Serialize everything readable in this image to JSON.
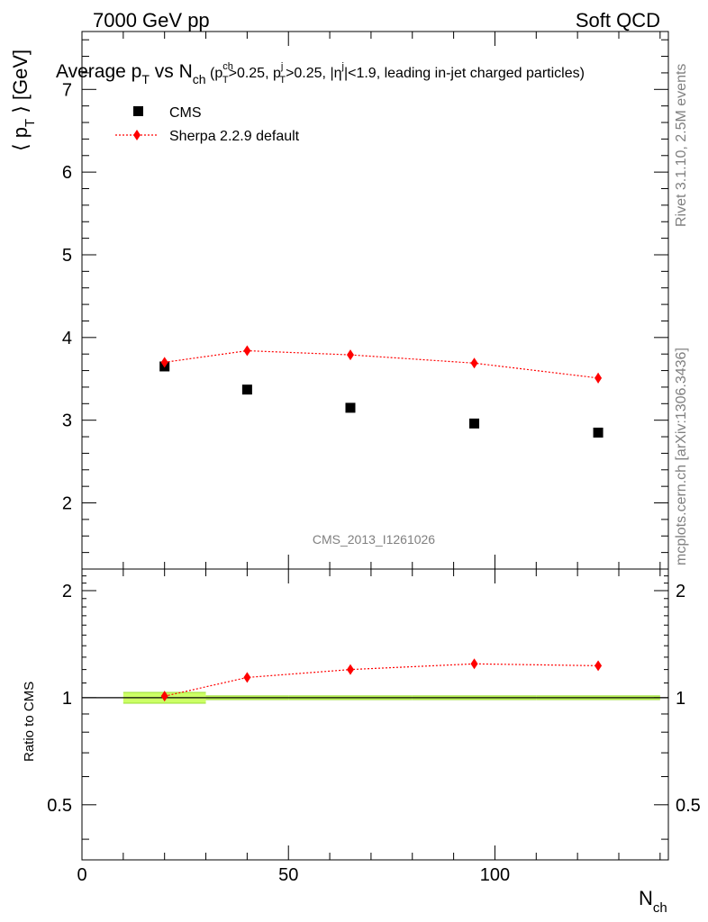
{
  "header": {
    "left": "7000 GeV pp",
    "right": "Soft QCD"
  },
  "side_labels": {
    "rivet": "Rivet 3.1.10,  2.5M events",
    "mcplots": "mcplots.cern.ch [arXiv:1306.3436]"
  },
  "analysis_tag": "CMS_2013_I1261026",
  "colors": {
    "mc": "#ff0000",
    "data": "#000000",
    "band": "#ccff66",
    "band_edge": "#99dd33"
  },
  "chart_data": [
    {
      "type": "scatter",
      "panel": "main",
      "title": {
        "lead": "Average p",
        "lead_sub": "T",
        "vs": " vs N",
        "vs_sub": "ch",
        "cut_open": " (p",
        "cut1_sup": "ch",
        "cut1_sub": "T",
        "cut1_val": ">0.25, p",
        "cut2_sup": "j",
        "cut2_sub": "T",
        "cut2_val": ">0.25, |η",
        "cut3_sup": "j",
        "cut_close": "|<1.9, leading in-jet charged particles)"
      },
      "ylabel": {
        "open": "⟨ p",
        "sub": "T",
        "close": " ⟩ [GeV]"
      },
      "xlim": [
        0,
        142
      ],
      "ylim": [
        1.2,
        7.7
      ],
      "yticks": [
        2,
        3,
        4,
        5,
        6,
        7
      ],
      "legend_position": "top-left",
      "series": [
        {
          "name": "CMS",
          "marker": "square",
          "x": [
            20,
            40,
            65,
            95,
            125
          ],
          "y": [
            3.65,
            3.37,
            3.15,
            2.96,
            2.85
          ]
        },
        {
          "name": "Sherpa 2.2.9 default",
          "marker": "diamond",
          "line": "dotted",
          "x": [
            20,
            40,
            65,
            95,
            125
          ],
          "y": [
            3.7,
            3.84,
            3.79,
            3.69,
            3.51
          ],
          "yerr": [
            0.03,
            0.03,
            0.03,
            0.04,
            0.06
          ]
        }
      ]
    },
    {
      "type": "line",
      "panel": "ratio",
      "ylabel": "Ratio to CMS",
      "xlabel_main": "N",
      "xlabel_sub": "ch",
      "xlim": [
        0,
        142
      ],
      "ylim": [
        0.35,
        2.3
      ],
      "xticks": [
        0,
        50,
        100
      ],
      "yticks": [
        0.5,
        1,
        2
      ],
      "yscale": "log",
      "reference": 1,
      "data_band": {
        "x": [
          10,
          30,
          50,
          80,
          110,
          140
        ],
        "rel_err": [
          0.035,
          0.012,
          0.012,
          0.012,
          0.012
        ]
      },
      "series": [
        {
          "name": "Sherpa 2.2.9 default",
          "x": [
            20,
            40,
            65,
            95,
            125
          ],
          "y": [
            1.01,
            1.14,
            1.2,
            1.245,
            1.23
          ]
        }
      ]
    }
  ]
}
